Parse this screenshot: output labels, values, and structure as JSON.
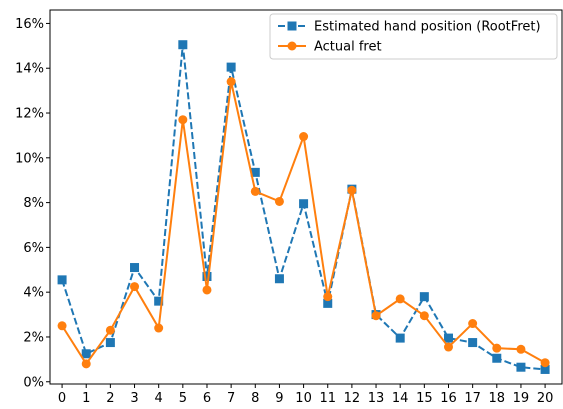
{
  "chart_data": {
    "type": "line",
    "x": [
      0,
      1,
      2,
      3,
      4,
      5,
      6,
      7,
      8,
      9,
      10,
      11,
      12,
      13,
      14,
      15,
      16,
      17,
      18,
      19,
      20
    ],
    "xlim": [
      -0.5,
      20.7
    ],
    "ylim": [
      -0.1,
      16.6
    ],
    "yticks": [
      0,
      2,
      4,
      6,
      8,
      10,
      12,
      14,
      16
    ],
    "ytick_suffix": "%",
    "legend_position": "top-right",
    "grid": false,
    "series": [
      {
        "name": "Estimated hand position (RootFret)",
        "color": "#1f77b4",
        "linestyle": "dashed",
        "marker": "square",
        "values": [
          4.55,
          1.25,
          1.75,
          5.1,
          3.6,
          15.05,
          4.7,
          14.05,
          9.35,
          4.6,
          7.95,
          3.5,
          8.6,
          3.0,
          1.95,
          3.8,
          1.95,
          1.75,
          1.05,
          0.65,
          0.55
        ]
      },
      {
        "name": "Actual fret",
        "color": "#ff7f0e",
        "linestyle": "solid",
        "marker": "circle",
        "values": [
          2.5,
          0.8,
          2.3,
          4.25,
          2.4,
          11.7,
          4.1,
          13.4,
          8.5,
          8.05,
          10.95,
          3.8,
          8.55,
          2.95,
          3.7,
          2.95,
          1.55,
          2.6,
          1.5,
          1.45,
          0.85
        ]
      }
    ]
  }
}
